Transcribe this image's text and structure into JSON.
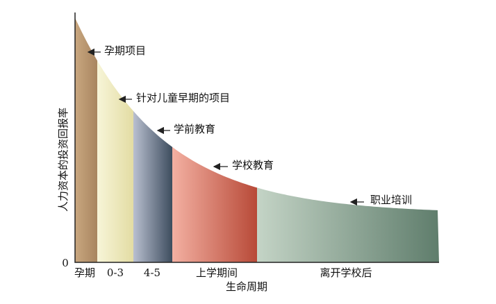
{
  "y_axis": {
    "label": "人力资本的投资回报率",
    "origin": "0"
  },
  "x_axis": {
    "label": "生命周期"
  },
  "stages": [
    {
      "label": "孕期"
    },
    {
      "label": "0-3"
    },
    {
      "label": "4-5"
    },
    {
      "label": "上学期间"
    },
    {
      "label": "离开学校后"
    }
  ],
  "annotations": [
    {
      "label": "孕期项目"
    },
    {
      "label": "针对儿童早期的项目"
    },
    {
      "label": "学前教育"
    },
    {
      "label": "学校教育"
    },
    {
      "label": "职业培训"
    }
  ]
}
